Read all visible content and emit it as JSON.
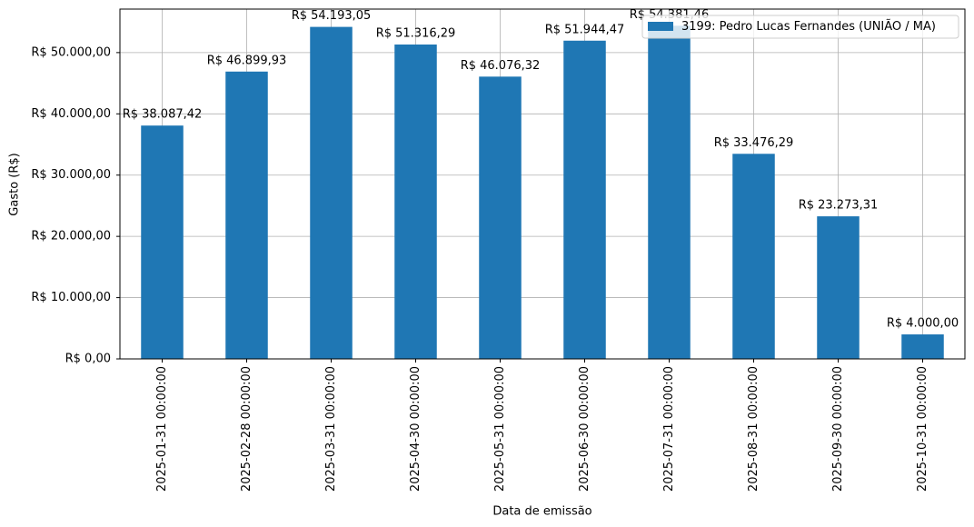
{
  "chart_data": {
    "type": "bar",
    "x_label": "Data de emissão",
    "y_label": "Gasto (R$)",
    "categories": [
      "2025-01-31 00:00:00",
      "2025-02-28 00:00:00",
      "2025-03-31 00:00:00",
      "2025-04-30 00:00:00",
      "2025-05-31 00:00:00",
      "2025-06-30 00:00:00",
      "2025-07-31 00:00:00",
      "2025-08-31 00:00:00",
      "2025-09-30 00:00:00",
      "2025-10-31 00:00:00"
    ],
    "series": [
      {
        "name": "3199: Pedro Lucas Fernandes (UNIÃO / MA)",
        "color": "#1f77b4",
        "values": [
          38087.42,
          46899.93,
          54193.05,
          51316.29,
          46076.32,
          51944.47,
          54381.46,
          33476.29,
          23273.31,
          4000.0
        ],
        "value_labels": [
          "R$ 38.087,42",
          "R$ 46.899,93",
          "R$ 54.193,05",
          "R$ 51.316,29",
          "R$ 46.076,32",
          "R$ 51.944,47",
          "R$ 54.381,46",
          "R$ 33.476,29",
          "R$ 23.273,31",
          "R$ 4.000,00"
        ]
      }
    ],
    "ylim": [
      0,
      57100
    ],
    "yticks": [
      {
        "value": 0,
        "label": "R$ 0,00"
      },
      {
        "value": 10000,
        "label": "R$ 10.000,00"
      },
      {
        "value": 20000,
        "label": "R$ 20.000,00"
      },
      {
        "value": 30000,
        "label": "R$ 30.000,00"
      },
      {
        "value": 40000,
        "label": "R$ 40.000,00"
      },
      {
        "value": 50000,
        "label": "R$ 50.000,00"
      }
    ],
    "grid": true,
    "legend": "upper right"
  }
}
